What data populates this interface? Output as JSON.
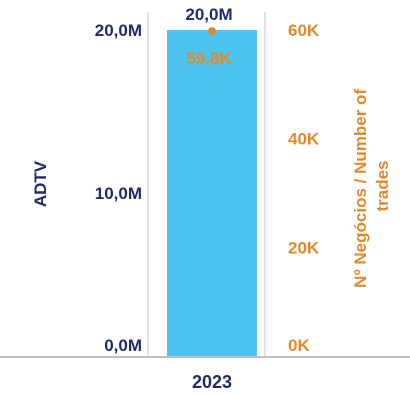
{
  "chart_data": {
    "type": "bar",
    "categories": [
      "2023"
    ],
    "series": [
      {
        "type": "bar",
        "axis": "left",
        "values": [
          20.0
        ],
        "value_labels": [
          "20,0M"
        ],
        "color": "#4cc3f0"
      },
      {
        "type": "line",
        "axis": "right",
        "values": [
          59.8
        ],
        "value_labels": [
          "59,8K"
        ],
        "color": "#e08a2c"
      }
    ],
    "ylabel": "ADTV",
    "ylabel_right": "Nº Negócios / Number of trades",
    "ylabel_right_lines": [
      "Nº Negócios / Number of",
      "trades"
    ],
    "ylim": [
      0,
      20
    ],
    "ylim_right": [
      0,
      60
    ],
    "yticks": [
      0,
      10,
      20
    ],
    "yticklabels": [
      "0,0M",
      "10,0M",
      "20,0M"
    ],
    "yticks_right": [
      0,
      20,
      40,
      60
    ],
    "yticklabels_right": [
      "0K",
      "20K",
      "40K",
      "60K"
    ],
    "grid": false,
    "legend": "none",
    "colors": {
      "left_axis": "#1f2d6b",
      "right_axis": "#e08a2c",
      "bar": "#4cc3f0",
      "frame": "#d9d9d9"
    }
  }
}
